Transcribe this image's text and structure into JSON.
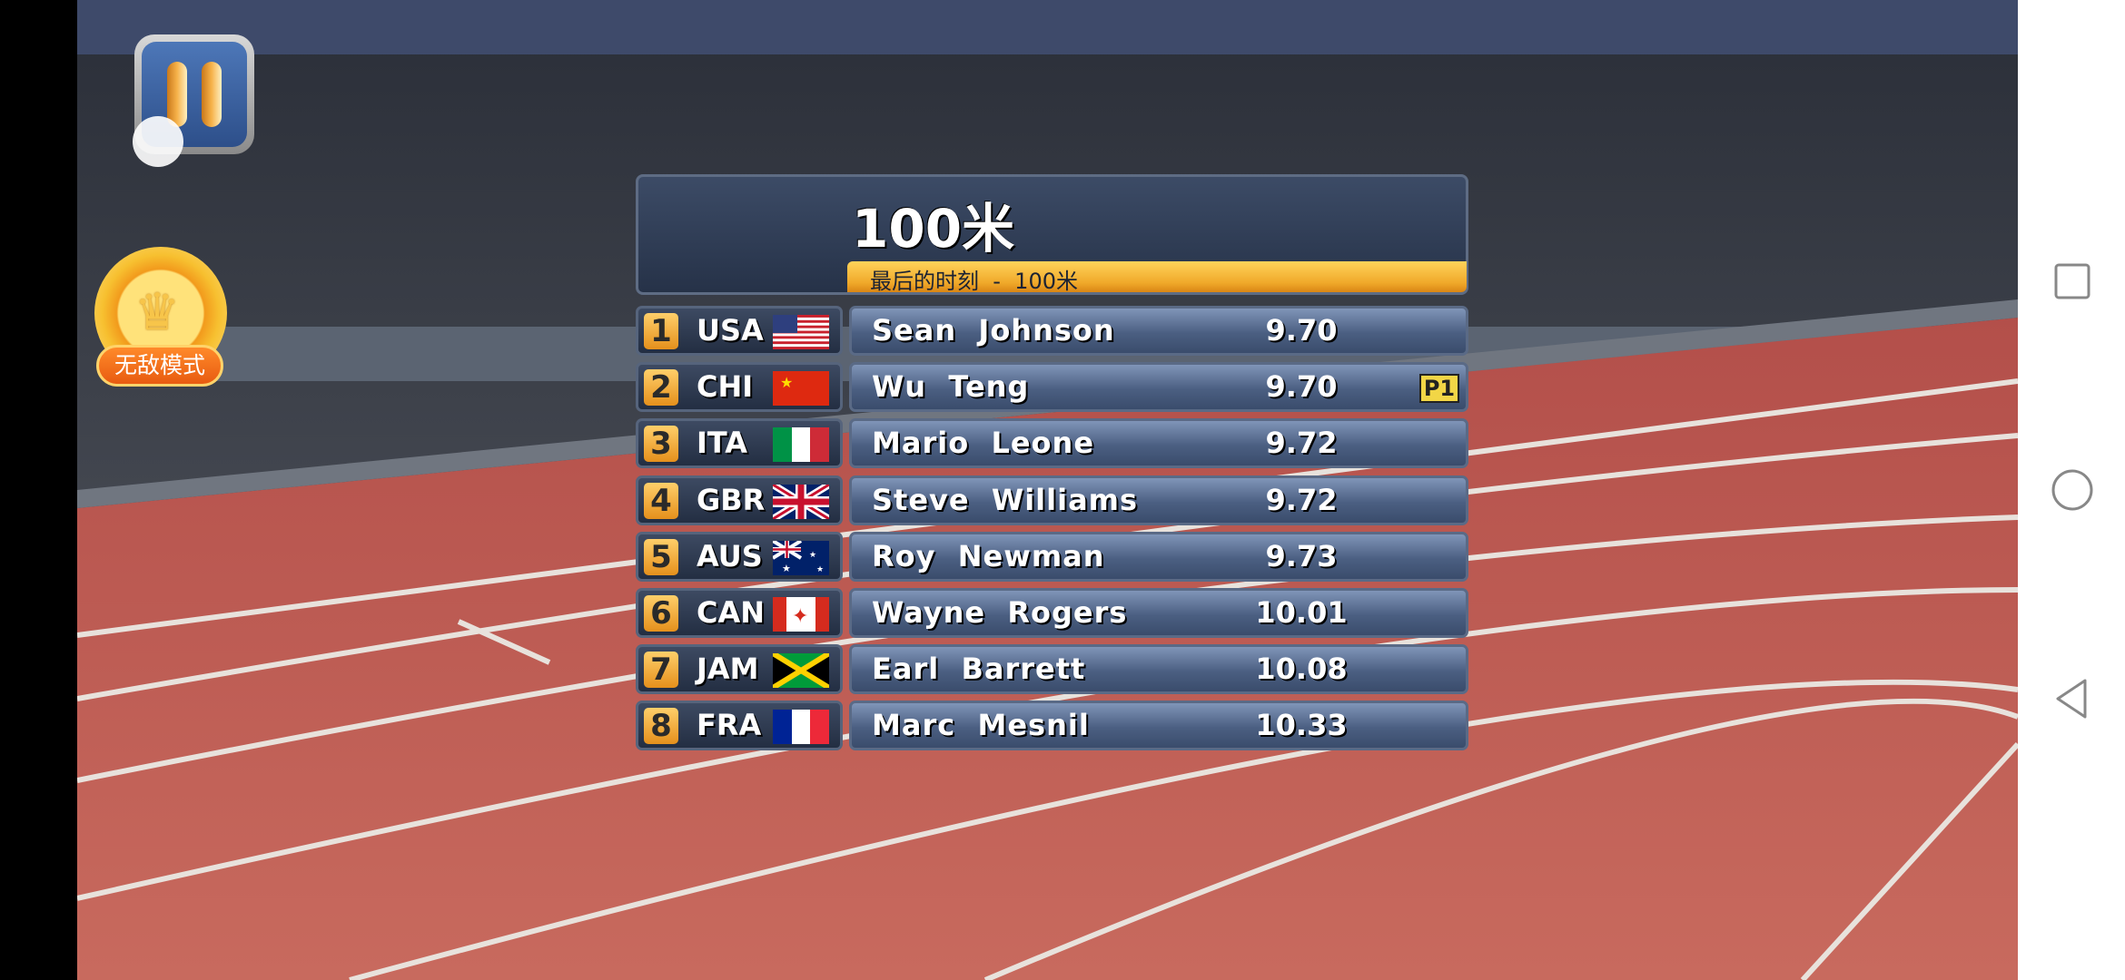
{
  "hud": {
    "invincible_label": "无敌模式"
  },
  "panel": {
    "title": "100米",
    "subtitle": "最后的时刻  -  100米"
  },
  "results": [
    {
      "rank": "1",
      "country": "USA",
      "flag": "us",
      "name": "Sean  Johnson",
      "time": "9.70",
      "badge": null
    },
    {
      "rank": "2",
      "country": "CHI",
      "flag": "cn",
      "name": "Wu  Teng",
      "time": "9.70",
      "badge": "P1"
    },
    {
      "rank": "3",
      "country": "ITA",
      "flag": "it",
      "name": "Mario  Leone",
      "time": "9.72",
      "badge": null
    },
    {
      "rank": "4",
      "country": "GBR",
      "flag": "gb",
      "name": "Steve  Williams",
      "time": "9.72",
      "badge": null
    },
    {
      "rank": "5",
      "country": "AUS",
      "flag": "au",
      "name": "Roy  Newman",
      "time": "9.73",
      "badge": null
    },
    {
      "rank": "6",
      "country": "CAN",
      "flag": "ca",
      "name": "Wayne  Rogers",
      "time": "10.01",
      "badge": null
    },
    {
      "rank": "7",
      "country": "JAM",
      "flag": "jm",
      "name": "Earl  Barrett",
      "time": "10.08",
      "badge": null
    },
    {
      "rank": "8",
      "country": "FRA",
      "flag": "fr",
      "name": "Marc  Mesnil",
      "time": "10.33",
      "badge": null
    }
  ],
  "nav": {
    "icons": [
      "square-recents-icon",
      "circle-home-icon",
      "triangle-back-icon"
    ]
  },
  "colors": {
    "track": "#c4584f",
    "panel": "#2b3850",
    "accent": "#f0a92a"
  }
}
